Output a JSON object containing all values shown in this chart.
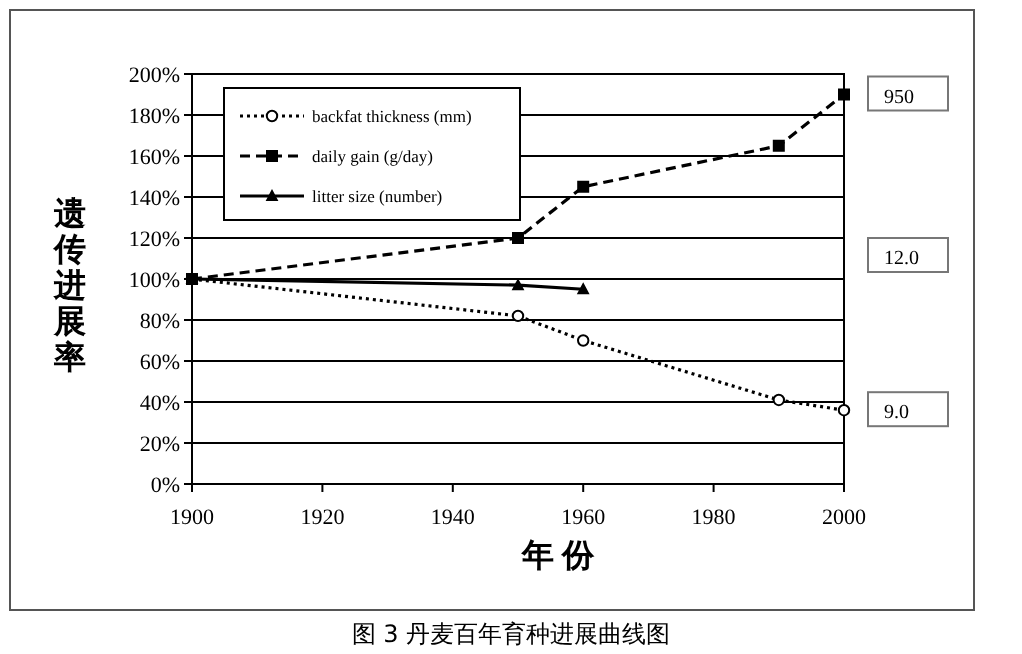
{
  "chart_data": {
    "type": "line",
    "title": "图 3  丹麦百年育种进展曲线图",
    "xlabel": "年  份",
    "ylabel": "遗传进展率",
    "xlim": [
      1900,
      2000
    ],
    "xticks": [
      1900,
      1920,
      1940,
      1960,
      1980,
      2000
    ],
    "ylim": [
      0,
      200
    ],
    "yticks": [
      {
        "value": 0,
        "label": "0%"
      },
      {
        "value": 20,
        "label": "20%"
      },
      {
        "value": 40,
        "label": "40%"
      },
      {
        "value": 60,
        "label": "60%"
      },
      {
        "value": 80,
        "label": "80%"
      },
      {
        "value": 100,
        "label": "100%"
      },
      {
        "value": 120,
        "label": "120%"
      },
      {
        "value": 140,
        "label": "140%"
      },
      {
        "value": 160,
        "label": "160%"
      },
      {
        "value": 180,
        "label": "180%"
      },
      {
        "value": 200,
        "label": "200%"
      }
    ],
    "grid": "y",
    "legend": "top left",
    "series": [
      {
        "name": "backfat thickness (mm)",
        "color": "#000000",
        "marker": "circle",
        "line_style": "dotted",
        "x": [
          1900,
          1950,
          1960,
          1990,
          2000
        ],
        "values": [
          100,
          82,
          70,
          41,
          36
        ]
      },
      {
        "name": "daily gain (g/day)",
        "color": "#000000",
        "marker": "square",
        "line_style": "dashed",
        "x": [
          1900,
          1950,
          1960,
          1990,
          2000
        ],
        "values": [
          100,
          120,
          145,
          165,
          190
        ]
      },
      {
        "name": "litter size (number)",
        "color": "#000000",
        "marker": "triangle",
        "line_style": "solid",
        "x": [
          1900,
          1950,
          1960
        ],
        "values": [
          100,
          97,
          95
        ]
      }
    ],
    "annotations": [
      {
        "text": "950",
        "x": 2000,
        "y": 190
      },
      "12.0",
      {
        "text": "9.0",
        "x": 2000,
        "y": 36
      }
    ]
  }
}
